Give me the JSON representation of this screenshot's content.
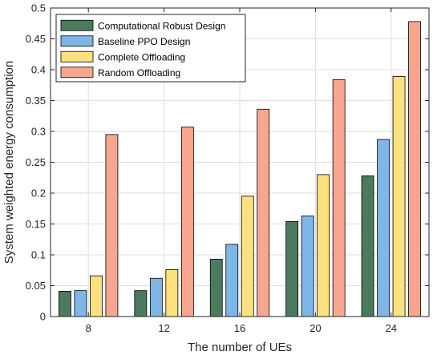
{
  "chart_data": {
    "type": "bar",
    "xlabel": "The number of UEs",
    "ylabel": "System weighted energy consumption",
    "categories": [
      "8",
      "12",
      "16",
      "20",
      "24"
    ],
    "ylim": [
      0,
      0.5
    ],
    "yticks": [
      "0",
      "0.05",
      "0.1",
      "0.15",
      "0.2",
      "0.25",
      "0.3",
      "0.35",
      "0.4",
      "0.45",
      "0.5"
    ],
    "grid": true,
    "legend_position": "top-left",
    "series": [
      {
        "name": "Computational Robust Design",
        "color": "#4b7a5f",
        "values": [
          0.041,
          0.042,
          0.093,
          0.154,
          0.228
        ]
      },
      {
        "name": "Baseline PPO Design",
        "color": "#7eb6e8",
        "values": [
          0.042,
          0.062,
          0.117,
          0.163,
          0.287
        ]
      },
      {
        "name": "Complete Offloading",
        "color": "#fce17f",
        "values": [
          0.066,
          0.076,
          0.195,
          0.23,
          0.389
        ]
      },
      {
        "name": "Random Offloading",
        "color": "#f7a68f",
        "values": [
          0.295,
          0.307,
          0.336,
          0.384,
          0.478
        ]
      }
    ]
  }
}
